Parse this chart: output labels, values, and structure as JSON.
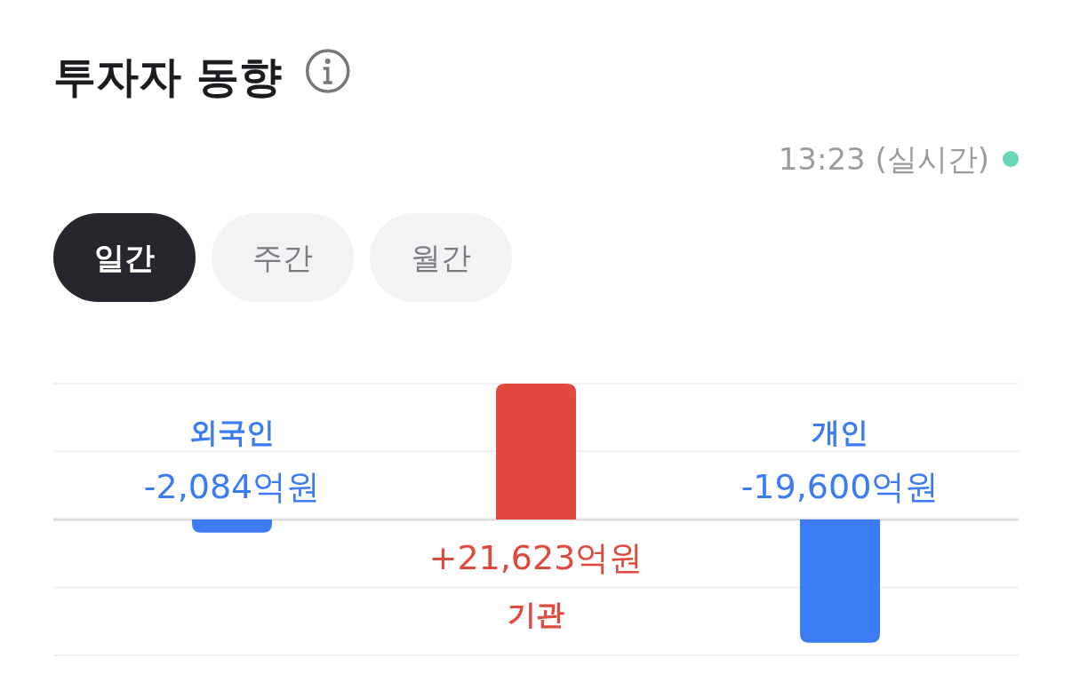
{
  "chart_data": {
    "type": "bar",
    "title": "투자자 동향",
    "subtitle": "13:23 (실시간)",
    "annotations": [
      "일간",
      "주간",
      "월간"
    ],
    "categories": [
      "외국인",
      "기관",
      "개인"
    ],
    "values": [
      -2084,
      21623,
      -19600
    ],
    "colors": [
      "#3b7cf2",
      "#e2493e",
      "#3b7cf2"
    ],
    "value_labels": [
      "-2,084억원",
      "+21,623억원",
      "-19,600억원"
    ],
    "ylim": [
      -21623,
      21623
    ],
    "yticks": [
      {
        "value": -21623,
        "label": null
      },
      {
        "value": -10812,
        "label": null
      },
      {
        "value": 0,
        "label": null
      },
      {
        "value": 10812,
        "label": null
      },
      {
        "value": 21623,
        "label": null
      }
    ],
    "grid": "y",
    "tick_labels": "x"
  }
}
